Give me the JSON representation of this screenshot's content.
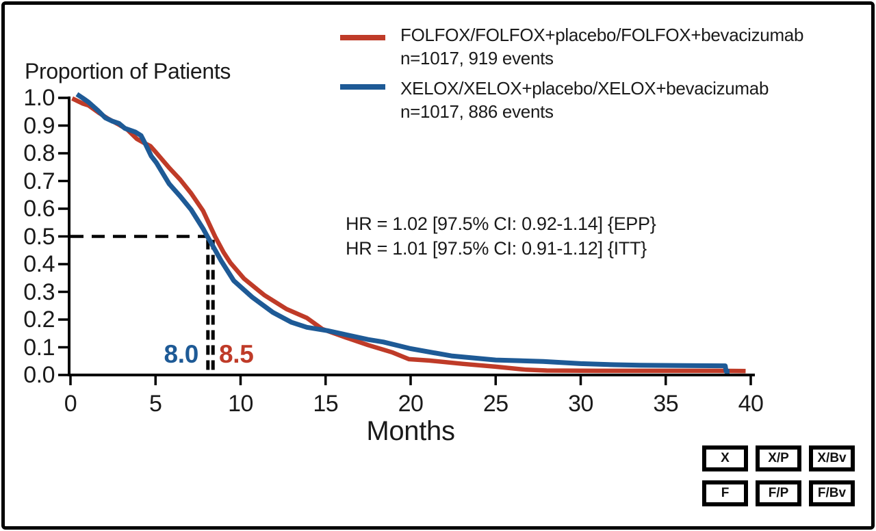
{
  "chart_data": {
    "type": "line",
    "title_left": "Proportion of Patients",
    "xlabel": "Months",
    "xlim": [
      0,
      40
    ],
    "ylim": [
      0.0,
      1.0
    ],
    "grid": false,
    "legend_position": "top-right",
    "x_ticks": [
      0,
      5,
      10,
      15,
      20,
      25,
      30,
      35,
      40
    ],
    "y_ticks": [
      "1.0",
      "0.9",
      "0.8",
      "0.7",
      "0.6",
      "0.5",
      "0.4",
      "0.3",
      "0.2",
      "0.1",
      "0.0"
    ],
    "series": [
      {
        "name": "FOLFOX/FOLFOX+placebo/FOLFOX+bevacizumab",
        "events_label": "n=1017, 919 events",
        "color": "#bf3b28",
        "median_months": 8.5,
        "points": [
          [
            0.1,
            0.998
          ],
          [
            0.7,
            0.98
          ],
          [
            1.05,
            0.973
          ],
          [
            1.7,
            0.945
          ],
          [
            2.2,
            0.925
          ],
          [
            2.8,
            0.905
          ],
          [
            3.35,
            0.885
          ],
          [
            3.9,
            0.852
          ],
          [
            4.3,
            0.838
          ],
          [
            4.7,
            0.826
          ],
          [
            5.0,
            0.805
          ],
          [
            5.8,
            0.748
          ],
          [
            6.45,
            0.705
          ],
          [
            7.1,
            0.655
          ],
          [
            7.8,
            0.592
          ],
          [
            8.5,
            0.5
          ],
          [
            9.0,
            0.443
          ],
          [
            9.4,
            0.405
          ],
          [
            10.2,
            0.348
          ],
          [
            11.4,
            0.288
          ],
          [
            12.7,
            0.238
          ],
          [
            13.9,
            0.206
          ],
          [
            14.8,
            0.166
          ],
          [
            16.2,
            0.135
          ],
          [
            17.5,
            0.108
          ],
          [
            18.9,
            0.082
          ],
          [
            19.9,
            0.057
          ],
          [
            21.1,
            0.052
          ],
          [
            23.1,
            0.04
          ],
          [
            25.0,
            0.03
          ],
          [
            26.8,
            0.019
          ],
          [
            28.0,
            0.016
          ],
          [
            31.0,
            0.015
          ],
          [
            34.5,
            0.015
          ],
          [
            38.0,
            0.015
          ],
          [
            39.7,
            0.014
          ]
        ]
      },
      {
        "name": "XELOX/XELOX+placebo/XELOX+bevacizumab",
        "events_label": "n=1017, 886 events",
        "color": "#1e5a96",
        "median_months": 8.0,
        "points": [
          [
            0.38,
            1.013
          ],
          [
            0.7,
            1.0
          ],
          [
            1.05,
            0.985
          ],
          [
            1.6,
            0.955
          ],
          [
            2.05,
            0.928
          ],
          [
            2.45,
            0.916
          ],
          [
            2.85,
            0.908
          ],
          [
            3.2,
            0.89
          ],
          [
            3.8,
            0.877
          ],
          [
            4.15,
            0.864
          ],
          [
            4.45,
            0.828
          ],
          [
            4.75,
            0.79
          ],
          [
            5.05,
            0.766
          ],
          [
            5.8,
            0.69
          ],
          [
            6.45,
            0.645
          ],
          [
            7.1,
            0.596
          ],
          [
            7.8,
            0.528
          ],
          [
            8.05,
            0.5
          ],
          [
            8.35,
            0.468
          ],
          [
            8.85,
            0.413
          ],
          [
            9.6,
            0.34
          ],
          [
            10.7,
            0.28
          ],
          [
            11.9,
            0.226
          ],
          [
            13.0,
            0.19
          ],
          [
            13.9,
            0.172
          ],
          [
            15.1,
            0.16
          ],
          [
            16.0,
            0.148
          ],
          [
            17.5,
            0.128
          ],
          [
            18.4,
            0.119
          ],
          [
            20.0,
            0.095
          ],
          [
            22.4,
            0.069
          ],
          [
            25.0,
            0.054
          ],
          [
            27.8,
            0.049
          ],
          [
            30.0,
            0.041
          ],
          [
            32.0,
            0.037
          ],
          [
            33.5,
            0.035
          ],
          [
            36.0,
            0.034
          ],
          [
            38.5,
            0.033
          ],
          [
            38.55,
            0.013
          ],
          [
            38.75,
            0.013
          ]
        ]
      }
    ],
    "annotations": {
      "hr_lines": [
        "HR = 1.02 [97.5% CI: 0.92-1.14] {EPP}",
        "HR = 1.01 [97.5% CI: 0.91-1.12] {ITT}"
      ],
      "median_labels": {
        "xelox": "8.0",
        "folfox": "8.5"
      },
      "median_reference_proportion": 0.5
    }
  },
  "treatment_group_boxes": {
    "rows": [
      [
        "X",
        "X/P",
        "X/Bv"
      ],
      [
        "F",
        "F/P",
        "F/Bv"
      ]
    ]
  },
  "colors": {
    "folfox_red": "#bf3b28",
    "xelox_blue": "#1e5a96",
    "axis_black": "#000000"
  }
}
